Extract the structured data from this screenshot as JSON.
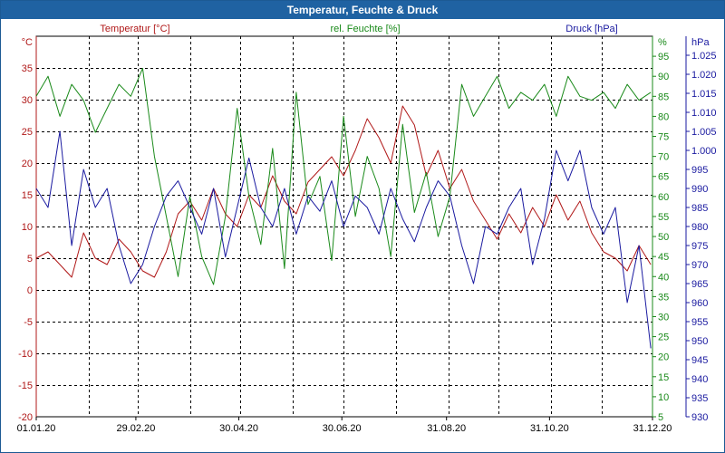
{
  "window": {
    "title": "Temperatur, Feuchte & Druck"
  },
  "chart_data": {
    "type": "line",
    "title": "Temperatur, Feuchte & Druck",
    "grid": true,
    "x": {
      "range": [
        "01.01.20",
        "31.12.20"
      ],
      "tick_labels": [
        "01.01.20",
        "29.02.20",
        "30.04.20",
        "30.06.20",
        "31.08.20",
        "31.10.20",
        "31.12.20"
      ]
    },
    "axes": {
      "temperature": {
        "unit": "°C",
        "label": "Temperatur [°C]",
        "ylim": [
          -20,
          40
        ],
        "ticks": [
          -20,
          -15,
          -10,
          -5,
          0,
          5,
          10,
          15,
          20,
          25,
          30,
          35
        ],
        "color": "#b01818"
      },
      "humidity": {
        "unit": "%",
        "label": "rel. Feuchte [%]",
        "ylim": [
          5,
          100
        ],
        "ticks": [
          5,
          10,
          15,
          20,
          25,
          30,
          35,
          40,
          45,
          50,
          55,
          60,
          65,
          70,
          75,
          80,
          85,
          90,
          95
        ],
        "color": "#1a8a1a"
      },
      "pressure": {
        "unit": "hPa",
        "label": "Druck [hPa]",
        "ylim": [
          930,
          1030
        ],
        "ticks": [
          "930",
          "935",
          "940",
          "945",
          "950",
          "955",
          "960",
          "965",
          "970",
          "975",
          "980",
          "985",
          "990",
          "995",
          "1.000",
          "1.005",
          "1.010",
          "1.015",
          "1.020",
          "1.025"
        ],
        "color": "#1a1aa0"
      }
    },
    "series": [
      {
        "name": "Temperatur [°C]",
        "axis": "temperature",
        "color": "#b01818",
        "x": [
          "01.01.20",
          "08.01.20",
          "15.01.20",
          "22.01.20",
          "29.01.20",
          "05.02.20",
          "12.02.20",
          "19.02.20",
          "26.02.20",
          "04.03.20",
          "11.03.20",
          "18.03.20",
          "25.03.20",
          "01.04.20",
          "08.04.20",
          "15.04.20",
          "22.04.20",
          "29.04.20",
          "06.05.20",
          "13.05.20",
          "20.05.20",
          "27.05.20",
          "03.06.20",
          "10.06.20",
          "17.06.20",
          "24.06.20",
          "01.07.20",
          "08.07.20",
          "15.07.20",
          "22.07.20",
          "29.07.20",
          "05.08.20",
          "12.08.20",
          "19.08.20",
          "26.08.20",
          "02.09.20",
          "09.09.20",
          "16.09.20",
          "23.09.20",
          "30.09.20",
          "07.10.20",
          "14.10.20",
          "21.10.20",
          "28.10.20",
          "04.11.20",
          "11.11.20",
          "18.11.20",
          "25.11.20",
          "02.12.20",
          "09.12.20",
          "16.12.20",
          "23.12.20",
          "30.12.20"
        ],
        "values": [
          5,
          6,
          4,
          2,
          9,
          5,
          4,
          8,
          6,
          3,
          2,
          6,
          12,
          14,
          11,
          16,
          12,
          10,
          15,
          13,
          18,
          14,
          12,
          17,
          19,
          21,
          18,
          22,
          27,
          24,
          20,
          29,
          26,
          18,
          22,
          16,
          19,
          14,
          11,
          8,
          12,
          9,
          13,
          10,
          15,
          11,
          14,
          9,
          6,
          5,
          3,
          7,
          4
        ]
      },
      {
        "name": "rel. Feuchte [%]",
        "axis": "humidity",
        "color": "#1a8a1a",
        "x": [
          "01.01.20",
          "08.01.20",
          "15.01.20",
          "22.01.20",
          "29.01.20",
          "05.02.20",
          "12.02.20",
          "19.02.20",
          "26.02.20",
          "04.03.20",
          "11.03.20",
          "18.03.20",
          "25.03.20",
          "01.04.20",
          "08.04.20",
          "15.04.20",
          "22.04.20",
          "29.04.20",
          "06.05.20",
          "13.05.20",
          "20.05.20",
          "27.05.20",
          "03.06.20",
          "10.06.20",
          "17.06.20",
          "24.06.20",
          "01.07.20",
          "08.07.20",
          "15.07.20",
          "22.07.20",
          "29.07.20",
          "05.08.20",
          "12.08.20",
          "19.08.20",
          "26.08.20",
          "02.09.20",
          "09.09.20",
          "16.09.20",
          "23.09.20",
          "30.09.20",
          "07.10.20",
          "14.10.20",
          "21.10.20",
          "28.10.20",
          "04.11.20",
          "11.11.20",
          "18.11.20",
          "25.11.20",
          "02.12.20",
          "09.12.20",
          "16.12.20",
          "23.12.20",
          "30.12.20"
        ],
        "values": [
          85,
          90,
          80,
          88,
          84,
          76,
          82,
          88,
          85,
          92,
          70,
          55,
          40,
          60,
          45,
          38,
          55,
          82,
          60,
          48,
          72,
          42,
          86,
          58,
          65,
          44,
          80,
          55,
          70,
          62,
          45,
          78,
          56,
          66,
          50,
          60,
          88,
          80,
          85,
          90,
          82,
          86,
          84,
          88,
          80,
          90,
          85,
          84,
          86,
          82,
          88,
          84,
          86
        ]
      },
      {
        "name": "Druck [hPa]",
        "axis": "pressure",
        "color": "#1a1aa0",
        "x": [
          "01.01.20",
          "08.01.20",
          "15.01.20",
          "22.01.20",
          "29.01.20",
          "05.02.20",
          "12.02.20",
          "19.02.20",
          "26.02.20",
          "04.03.20",
          "11.03.20",
          "18.03.20",
          "25.03.20",
          "01.04.20",
          "08.04.20",
          "15.04.20",
          "22.04.20",
          "29.04.20",
          "06.05.20",
          "13.05.20",
          "20.05.20",
          "27.05.20",
          "03.06.20",
          "10.06.20",
          "17.06.20",
          "24.06.20",
          "01.07.20",
          "08.07.20",
          "15.07.20",
          "22.07.20",
          "29.07.20",
          "05.08.20",
          "12.08.20",
          "19.08.20",
          "26.08.20",
          "02.09.20",
          "09.09.20",
          "16.09.20",
          "23.09.20",
          "30.09.20",
          "07.10.20",
          "14.10.20",
          "21.10.20",
          "28.10.20",
          "04.11.20",
          "11.11.20",
          "18.11.20",
          "25.11.20",
          "02.12.20",
          "09.12.20",
          "16.12.20",
          "23.12.20",
          "30.12.20"
        ],
        "values": [
          990,
          985,
          1005,
          975,
          995,
          985,
          990,
          975,
          965,
          970,
          980,
          988,
          992,
          985,
          978,
          990,
          972,
          985,
          998,
          985,
          980,
          990,
          978,
          988,
          984,
          992,
          980,
          988,
          985,
          978,
          990,
          982,
          976,
          985,
          992,
          988,
          975,
          965,
          980,
          978,
          985,
          990,
          970,
          982,
          1000,
          992,
          1000,
          985,
          978,
          985,
          960,
          975,
          948
        ]
      }
    ]
  }
}
